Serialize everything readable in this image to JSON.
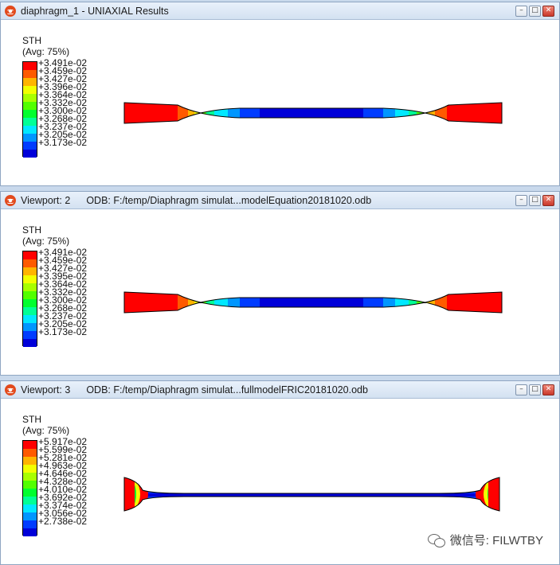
{
  "viewports": [
    {
      "title_icon": "abaqus-viewport-icon",
      "title": "diaphragm_1 - UNIAXIAL Results",
      "odb": "",
      "legend": {
        "variable": "STH",
        "average": "(Avg: 75%)",
        "values": [
          "+3.491e-02",
          "+3.459e-02",
          "+3.427e-02",
          "+3.396e-02",
          "+3.364e-02",
          "+3.332e-02",
          "+3.300e-02",
          "+3.268e-02",
          "+3.237e-02",
          "+3.205e-02",
          "+3.173e-02"
        ]
      },
      "contour_style": "flat-ends"
    },
    {
      "title_icon": "abaqus-viewport-icon",
      "title": "Viewport: 2",
      "odb": "ODB: F:/temp/Diaphragm simulat...modelEquation20181020.odb",
      "legend": {
        "variable": "STH",
        "average": "(Avg: 75%)",
        "values": [
          "+3.491e-02",
          "+3.459e-02",
          "+3.427e-02",
          "+3.395e-02",
          "+3.364e-02",
          "+3.332e-02",
          "+3.300e-02",
          "+3.268e-02",
          "+3.237e-02",
          "+3.205e-02",
          "+3.173e-02"
        ]
      },
      "contour_style": "flat-ends"
    },
    {
      "title_icon": "abaqus-viewport-icon",
      "title": "Viewport: 3",
      "odb": "ODB: F:/temp/Diaphragm simulat...fullmodelFRIC20181020.odb",
      "legend": {
        "variable": "STH",
        "average": "(Avg: 75%)",
        "values": [
          "+5.917e-02",
          "+5.599e-02",
          "+5.281e-02",
          "+4.963e-02",
          "+4.646e-02",
          "+4.328e-02",
          "+4.010e-02",
          "+3.692e-02",
          "+3.374e-02",
          "+3.056e-02",
          "+2.738e-02"
        ]
      },
      "contour_style": "curved-ends"
    }
  ],
  "colormap": [
    "#ff0000",
    "#ff5a00",
    "#ffb400",
    "#f2ff00",
    "#a8ff00",
    "#52ff00",
    "#00ff2e",
    "#00ff96",
    "#00e8ff",
    "#0096ff",
    "#003cff",
    "#0000d9"
  ],
  "watermark": {
    "icon": "wechat-icon",
    "text": "微信号: FILWTBY"
  }
}
